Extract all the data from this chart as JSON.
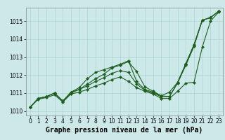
{
  "background_color": "#cce8e8",
  "grid_color": "#aad4d4",
  "line_color": "#1e5e1e",
  "title": "Graphe pression niveau de la mer (hPa)",
  "ylim": [
    1009.75,
    1015.75
  ],
  "xlim": [
    -0.5,
    23.5
  ],
  "yticks": [
    1010,
    1011,
    1012,
    1013,
    1014,
    1015
  ],
  "series": [
    [
      1010.2,
      1010.7,
      1010.8,
      1011.0,
      1010.55,
      1011.05,
      1011.2,
      1011.5,
      1011.8,
      1012.05,
      1012.4,
      1012.55,
      1012.75,
      1012.2,
      1011.35,
      1011.1,
      1010.85,
      1011.05,
      1011.6,
      1012.65,
      1013.7,
      1015.05,
      1015.2,
      1015.55
    ],
    [
      1010.2,
      1010.7,
      1010.8,
      1011.0,
      1010.55,
      1011.05,
      1011.3,
      1011.8,
      1012.15,
      1012.3,
      1012.45,
      1012.6,
      1012.8,
      1011.65,
      1011.2,
      1011.05,
      1010.85,
      1010.8,
      1011.6,
      1012.6,
      1013.7,
      1015.05,
      1015.2,
      1015.55
    ],
    [
      1010.2,
      1010.7,
      1010.8,
      1011.0,
      1010.55,
      1011.0,
      1011.2,
      1011.4,
      1011.65,
      1011.85,
      1012.1,
      1012.25,
      1012.15,
      1011.5,
      1011.15,
      1011.0,
      1010.8,
      1010.8,
      1011.55,
      1012.55,
      1013.6,
      1015.05,
      1015.2,
      1015.55
    ],
    [
      1010.2,
      1010.65,
      1010.75,
      1010.9,
      1010.5,
      1010.95,
      1011.05,
      1011.2,
      1011.4,
      1011.55,
      1011.75,
      1011.9,
      1011.65,
      1011.3,
      1011.1,
      1010.95,
      1010.7,
      1010.7,
      1011.1,
      1011.55,
      1011.6,
      1013.55,
      1015.0,
      1015.5
    ]
  ],
  "title_fontsize": 7.0,
  "tick_fontsize": 5.5
}
